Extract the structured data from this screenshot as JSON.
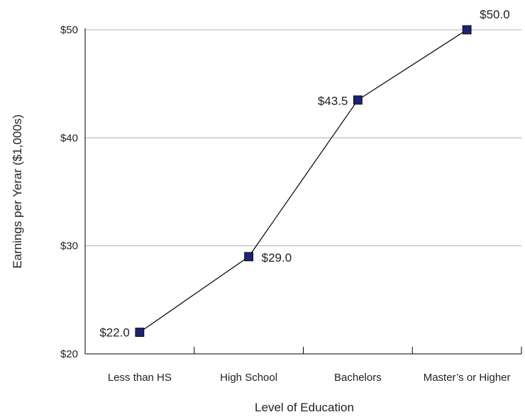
{
  "chart_data": {
    "type": "line",
    "categories": [
      "Less than HS",
      "High School",
      "Bachelors",
      "Master’s or Higher"
    ],
    "series": [
      {
        "values": [
          22.0,
          29.0,
          43.5,
          50.0
        ]
      }
    ],
    "data_labels": [
      "$22.0",
      "$29.0",
      "$43.5",
      "$50.0"
    ],
    "xlabel": "Level of Education",
    "ylabel": "Earnings per Yerar ($1,000s)",
    "ylim": [
      20,
      50
    ],
    "yticks": [
      20,
      30,
      40,
      50
    ],
    "ytick_labels": [
      "$20",
      "$30",
      "$40",
      "$50"
    ],
    "grid": true,
    "colors": {
      "marker": "#1c2470",
      "line": "#000000",
      "grid": "#b0b0b0"
    }
  }
}
